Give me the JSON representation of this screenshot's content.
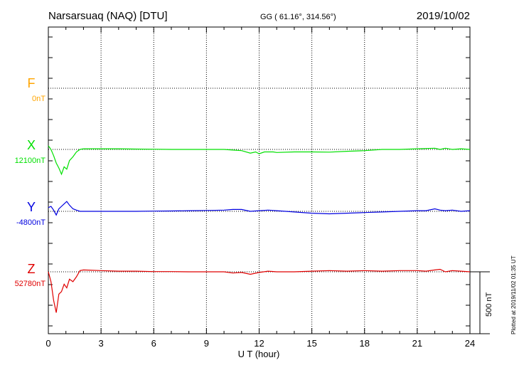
{
  "header": {
    "station": "Narsarsuaq (NAQ)  [DTU]",
    "coords": "GG ( 61.16°, 314.56°)",
    "date": "2019/10/02"
  },
  "plotted_note": "Plotted at 2019/11/02 01:35 UT",
  "chart_data": {
    "type": "line",
    "xlabel": "U T (hour)",
    "xlim": [
      0,
      24
    ],
    "xticks": [
      "0",
      "3",
      "6",
      "9",
      "12",
      "15",
      "18",
      "21",
      "24"
    ],
    "scale_bar": {
      "label": "500 nT",
      "value": 500
    },
    "grid": true,
    "series": [
      {
        "name": "F",
        "baseline_label": "0nT",
        "color": "#FFA500",
        "x": [],
        "y": []
      },
      {
        "name": "X",
        "baseline_label": "12100nT",
        "color": "#00E000",
        "x": [
          0,
          0.15,
          0.3,
          0.45,
          0.6,
          0.75,
          0.9,
          1.05,
          1.2,
          1.4,
          1.6,
          1.8,
          2,
          3,
          4,
          5,
          6,
          7,
          8,
          9,
          10,
          10.5,
          11,
          11.5,
          11.8,
          12,
          12.3,
          12.8,
          13,
          14,
          15,
          16,
          17,
          18,
          19,
          20,
          21,
          22,
          22.3,
          22.6,
          23,
          23.5,
          24
        ],
        "y": [
          12130,
          12100,
          12050,
          11990,
          11950,
          11900,
          11960,
          11940,
          12010,
          12040,
          12080,
          12100,
          12105,
          12105,
          12105,
          12103,
          12102,
          12100,
          12100,
          12100,
          12100,
          12095,
          12090,
          12070,
          12080,
          12065,
          12080,
          12080,
          12075,
          12080,
          12080,
          12078,
          12085,
          12090,
          12100,
          12100,
          12105,
          12110,
          12100,
          12110,
          12100,
          12105,
          12100
        ]
      },
      {
        "name": "Y",
        "baseline_label": "-4800nT",
        "color": "#0000E0",
        "x": [
          0,
          0.15,
          0.3,
          0.45,
          0.6,
          0.75,
          0.9,
          1.05,
          1.2,
          1.4,
          1.6,
          1.8,
          2,
          3,
          4,
          5,
          6,
          7,
          8,
          9,
          10,
          10.5,
          11,
          11.5,
          12,
          12.5,
          13,
          14,
          15,
          16,
          17,
          18,
          19,
          20,
          21,
          21.5,
          22,
          22.3,
          22.6,
          23,
          23.5,
          24
        ],
        "y": [
          -4770,
          -4760,
          -4790,
          -4830,
          -4780,
          -4760,
          -4740,
          -4720,
          -4750,
          -4780,
          -4790,
          -4800,
          -4800,
          -4800,
          -4800,
          -4800,
          -4798,
          -4797,
          -4795,
          -4793,
          -4790,
          -4785,
          -4785,
          -4800,
          -4795,
          -4790,
          -4795,
          -4805,
          -4815,
          -4820,
          -4815,
          -4810,
          -4805,
          -4800,
          -4795,
          -4795,
          -4780,
          -4790,
          -4795,
          -4790,
          -4800,
          -4795
        ]
      },
      {
        "name": "Z",
        "baseline_label": "52780nT",
        "color": "#E00000",
        "x": [
          0,
          0.15,
          0.3,
          0.45,
          0.6,
          0.75,
          0.9,
          1.05,
          1.2,
          1.4,
          1.6,
          1.8,
          2,
          3,
          4,
          5,
          6,
          7,
          8,
          9,
          10,
          10.5,
          11,
          11.5,
          12,
          12.5,
          13,
          14,
          15,
          16,
          17,
          18,
          19,
          20,
          21,
          21.5,
          22,
          22.3,
          22.6,
          23,
          23.5,
          24
        ],
        "y": [
          52780,
          52700,
          52550,
          52450,
          52600,
          52620,
          52680,
          52650,
          52720,
          52700,
          52740,
          52790,
          52795,
          52790,
          52785,
          52785,
          52782,
          52782,
          52780,
          52780,
          52780,
          52770,
          52775,
          52760,
          52775,
          52785,
          52780,
          52780,
          52785,
          52790,
          52785,
          52790,
          52785,
          52790,
          52790,
          52785,
          52795,
          52800,
          52780,
          52790,
          52785,
          52780
        ]
      }
    ]
  }
}
